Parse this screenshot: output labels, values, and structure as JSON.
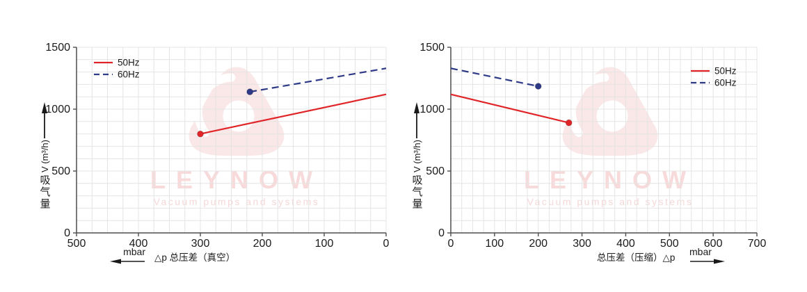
{
  "watermark": {
    "brand": "LEYNOW",
    "tagline": "Vacuum pumps and systems"
  },
  "colors": {
    "series_50hz_red": "#e02428",
    "series_60hz_navy": "#2e3a87",
    "grid": "#e4e4e4",
    "axis": "#4d4d4d",
    "text": "#1a1a1a",
    "watermark_pink": "#f8dada",
    "watermark_logo_pink": "#fae7e7"
  },
  "chart_data": [
    {
      "type": "line",
      "title": "",
      "xlabel": "△p  总压差（真空）",
      "x_unit": "mbar",
      "x_arrow_direction": "left",
      "ylabel": "吸气量 V (m³/h)",
      "ylabel_cjk": "吸气量",
      "ylabel_latin": "V (m³/h)",
      "xlim": [
        500,
        0
      ],
      "x_ticks": [
        500,
        400,
        300,
        200,
        100,
        0
      ],
      "x_minor_step": 25,
      "ylim": [
        0,
        1500
      ],
      "y_ticks": [
        0,
        500,
        1000,
        1500
      ],
      "y_minor_step": 100,
      "grid": true,
      "legend_position": "top-left",
      "series": [
        {
          "name": "50Hz",
          "style": "solid",
          "color": "#e02428",
          "points": [
            [
              300,
              800
            ],
            [
              0,
              1120
            ]
          ],
          "marker": [
            300,
            800
          ]
        },
        {
          "name": "60Hz",
          "style": "dashed",
          "color": "#2e3a87",
          "points": [
            [
              220,
              1140
            ],
            [
              0,
              1330
            ]
          ],
          "marker": [
            220,
            1140
          ]
        }
      ]
    },
    {
      "type": "line",
      "title": "",
      "xlabel": "总压差（压缩）△p",
      "x_unit": "mbar",
      "x_arrow_direction": "right",
      "ylabel": "吸气量 V (m³/h)",
      "ylabel_cjk": "吸气量",
      "ylabel_latin": "V (m³/h)",
      "xlim": [
        0,
        700
      ],
      "x_ticks": [
        0,
        100,
        200,
        300,
        400,
        500,
        600,
        700
      ],
      "x_minor_step": 25,
      "ylim": [
        0,
        1500
      ],
      "y_ticks": [
        0,
        500,
        1000,
        1500
      ],
      "y_minor_step": 100,
      "grid": true,
      "legend_position": "top-right",
      "series": [
        {
          "name": "50Hz",
          "style": "solid",
          "color": "#e02428",
          "points": [
            [
              0,
              1120
            ],
            [
              270,
              890
            ]
          ],
          "marker": [
            270,
            890
          ]
        },
        {
          "name": "60Hz",
          "style": "dashed",
          "color": "#2e3a87",
          "points": [
            [
              0,
              1330
            ],
            [
              200,
              1185
            ]
          ],
          "marker": [
            200,
            1185
          ]
        }
      ]
    }
  ]
}
